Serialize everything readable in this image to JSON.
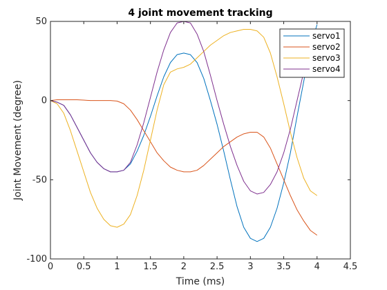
{
  "chart_data": {
    "type": "line",
    "title": "4 joint movement tracking",
    "xlabel": "Time (ms)",
    "ylabel": "Joint Movement (degree)",
    "xlim": [
      0,
      4.5
    ],
    "ylim": [
      -100,
      50
    ],
    "xticks": [
      0,
      0.5,
      1,
      1.5,
      2,
      2.5,
      3,
      3.5,
      4,
      4.5
    ],
    "yticks": [
      -100,
      -50,
      0,
      50
    ],
    "xtick_labels": [
      "0",
      "0.5",
      "1",
      "1.5",
      "2",
      "2.5",
      "3",
      "3.5",
      "4",
      "4.5"
    ],
    "ytick_labels": [
      "-100",
      "-50",
      "0",
      "50"
    ],
    "grid": false,
    "legend": {
      "position": "top-right"
    },
    "series": [
      {
        "name": "servo1",
        "color": "#0072BD",
        "x": [
          0,
          0.1,
          0.2,
          0.3,
          0.4,
          0.5,
          0.6,
          0.7,
          0.8,
          0.9,
          1.0,
          1.1,
          1.2,
          1.3,
          1.4,
          1.5,
          1.6,
          1.7,
          1.8,
          1.9,
          2.0,
          2.1,
          2.2,
          2.3,
          2.4,
          2.5,
          2.6,
          2.7,
          2.8,
          2.9,
          3.0,
          3.1,
          3.2,
          3.3,
          3.4,
          3.5,
          3.6,
          3.7,
          3.8,
          3.9,
          4.0
        ],
        "y": [
          0,
          -1,
          -3,
          -9,
          -17,
          -25,
          -33,
          -39,
          -43,
          -45,
          -45,
          -44,
          -40,
          -32,
          -22,
          -10,
          3,
          15,
          24,
          29,
          30,
          29,
          24,
          14,
          0,
          -15,
          -32,
          -50,
          -67,
          -80,
          -87,
          -89,
          -87,
          -80,
          -68,
          -52,
          -33,
          -10,
          12,
          34,
          48
        ]
      },
      {
        "name": "servo2",
        "color": "#D95319",
        "x": [
          0,
          0.1,
          0.2,
          0.3,
          0.4,
          0.5,
          0.6,
          0.7,
          0.8,
          0.9,
          1.0,
          1.1,
          1.2,
          1.3,
          1.4,
          1.5,
          1.6,
          1.7,
          1.8,
          1.9,
          2.0,
          2.1,
          2.2,
          2.3,
          2.4,
          2.5,
          2.6,
          2.7,
          2.8,
          2.9,
          3.0,
          3.1,
          3.2,
          3.3,
          3.4,
          3.5,
          3.6,
          3.7,
          3.8,
          3.9,
          4.0
        ],
        "y": [
          0,
          0.5,
          0.5,
          0.5,
          0.5,
          0.3,
          0,
          0,
          0,
          0,
          -0.3,
          -2,
          -6,
          -12,
          -19,
          -26,
          -33,
          -38,
          -42,
          -44,
          -45,
          -45,
          -44,
          -41,
          -37,
          -33,
          -29,
          -26,
          -23,
          -21,
          -20,
          -20,
          -23,
          -30,
          -40,
          -50,
          -60,
          -69,
          -76,
          -82,
          -85
        ]
      },
      {
        "name": "servo3",
        "color": "#EDB120",
        "x": [
          0,
          0.1,
          0.2,
          0.3,
          0.4,
          0.5,
          0.6,
          0.7,
          0.8,
          0.9,
          1.0,
          1.1,
          1.2,
          1.3,
          1.4,
          1.5,
          1.6,
          1.7,
          1.8,
          1.9,
          2.0,
          2.1,
          2.2,
          2.3,
          2.4,
          2.5,
          2.6,
          2.7,
          2.8,
          2.9,
          3.0,
          3.1,
          3.2,
          3.3,
          3.4,
          3.5,
          3.6,
          3.7,
          3.8,
          3.9,
          4.0
        ],
        "y": [
          0,
          -2,
          -8,
          -19,
          -32,
          -45,
          -58,
          -68,
          -75,
          -79,
          -80,
          -78,
          -72,
          -60,
          -44,
          -25,
          -6,
          10,
          18,
          20,
          21,
          23,
          27,
          31,
          35,
          38,
          41,
          43,
          44,
          45,
          45,
          44,
          40,
          30,
          15,
          -2,
          -20,
          -36,
          -49,
          -57,
          -60
        ]
      },
      {
        "name": "servo4",
        "color": "#7E2F8E",
        "x": [
          0,
          0.1,
          0.2,
          0.3,
          0.4,
          0.5,
          0.6,
          0.7,
          0.8,
          0.9,
          1.0,
          1.1,
          1.2,
          1.3,
          1.4,
          1.5,
          1.6,
          1.7,
          1.8,
          1.9,
          2.0,
          2.1,
          2.2,
          2.3,
          2.4,
          2.5,
          2.6,
          2.7,
          2.8,
          2.9,
          3.0,
          3.1,
          3.2,
          3.3,
          3.4,
          3.5,
          3.6,
          3.7,
          3.8,
          3.9
        ],
        "y": [
          0,
          -1,
          -3,
          -9,
          -17,
          -25,
          -33,
          -39,
          -43,
          -45,
          -45,
          -44,
          -39,
          -28,
          -14,
          2,
          18,
          32,
          43,
          49,
          50,
          49,
          42,
          31,
          16,
          0,
          -15,
          -29,
          -41,
          -51,
          -57,
          -59,
          -58,
          -53,
          -45,
          -33,
          -18,
          0,
          18,
          36
        ]
      }
    ]
  }
}
